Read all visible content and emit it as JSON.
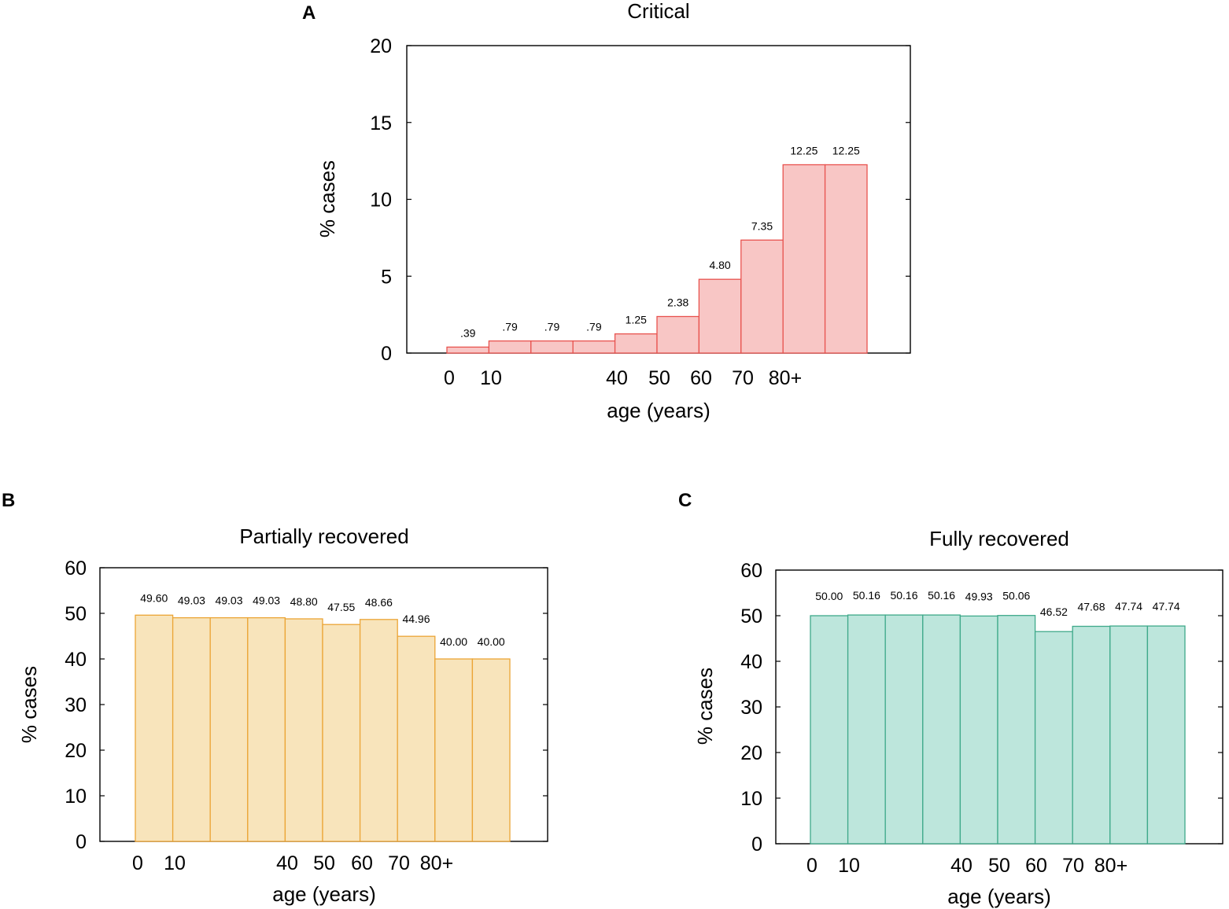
{
  "chart_data": [
    {
      "panel": "A",
      "type": "bar",
      "title": "Critical",
      "xlabel": "age (years)",
      "ylabel": "% cases",
      "ylim": [
        0,
        20
      ],
      "yticks": [
        "0",
        "5",
        "10",
        "15",
        "20"
      ],
      "xticks": [
        "0",
        "10",
        "40",
        "50",
        "60",
        "70",
        "80+"
      ],
      "values": [
        0.39,
        0.79,
        0.79,
        0.79,
        1.25,
        2.38,
        4.8,
        7.35,
        12.25,
        12.25
      ],
      "value_labels": [
        ".39",
        ".79",
        ".79",
        ".79",
        "1.25",
        "2.38",
        "4.80",
        "7.35",
        "12.25",
        "12.25"
      ],
      "fill_color": "#f8c6c5",
      "edge_color": "#e8534f"
    },
    {
      "panel": "B",
      "type": "bar",
      "title": "Partially recovered",
      "xlabel": "age (years)",
      "ylabel": "% cases",
      "ylim": [
        0,
        60
      ],
      "yticks": [
        "0",
        "10",
        "20",
        "30",
        "40",
        "50",
        "60"
      ],
      "xticks": [
        "0",
        "10",
        "40",
        "50",
        "60",
        "70",
        "80+"
      ],
      "values": [
        49.6,
        49.03,
        49.03,
        49.03,
        48.8,
        47.55,
        48.66,
        44.96,
        40.0,
        40.0
      ],
      "value_labels": [
        "49.60",
        "49.03",
        "49.03",
        "49.03",
        "48.80",
        "47.55",
        "48.66",
        "44.96",
        "40.00",
        "40.00"
      ],
      "fill_color": "#f8e4bb",
      "edge_color": "#eba536"
    },
    {
      "panel": "C",
      "type": "bar",
      "title": "Fully recovered",
      "xlabel": "age (years)",
      "ylabel": "% cases",
      "ylim": [
        0,
        60
      ],
      "yticks": [
        "0",
        "10",
        "20",
        "30",
        "40",
        "50",
        "60"
      ],
      "xticks": [
        "0",
        "10",
        "40",
        "50",
        "60",
        "70",
        "80+"
      ],
      "values": [
        50.0,
        50.16,
        50.16,
        50.16,
        49.93,
        50.06,
        46.52,
        47.68,
        47.74,
        47.74
      ],
      "value_labels": [
        "50.00",
        "50.16",
        "50.16",
        "50.16",
        "49.93",
        "50.06",
        "46.52",
        "47.68",
        "47.74",
        "47.74"
      ],
      "fill_color": "#bde6dc",
      "edge_color": "#3fa98a"
    }
  ]
}
